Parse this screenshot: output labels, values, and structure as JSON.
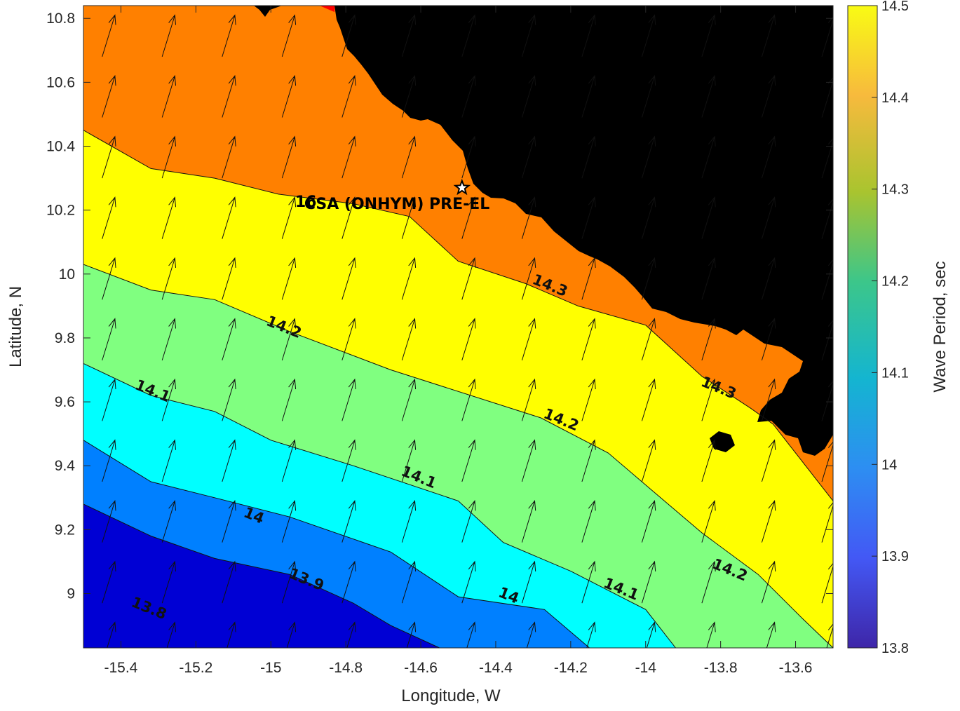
{
  "chart_data": {
    "type": "contour",
    "xlabel": "Longitude, W",
    "ylabel": "Latitude, N",
    "colorbar_label": "Wave Period, sec",
    "xlim": [
      -15.5,
      -13.5
    ],
    "ylim": [
      8.83,
      10.84
    ],
    "xticks": [
      "-15.4",
      "-15.2",
      "-15",
      "-14.8",
      "-14.6",
      "-14.4",
      "-14.2",
      "-14",
      "-13.8",
      "-13.6"
    ],
    "yticks": [
      "9",
      "9.2",
      "9.4",
      "9.6",
      "9.8",
      "10",
      "10.2",
      "10.4",
      "10.6",
      "10.8"
    ],
    "clim": [
      13.8,
      14.5
    ],
    "colorbar_ticks": [
      "13.8",
      "13.9",
      "14",
      "14.1",
      "14.2",
      "14.3",
      "14.4",
      "14.5"
    ],
    "contour_levels": [
      13.8,
      13.9,
      14.0,
      14.1,
      14.2,
      14.3,
      14.4
    ],
    "contour_labels": [
      {
        "text": "13.8",
        "lon": -15.33,
        "lat": 8.94
      },
      {
        "text": "13.9",
        "lon": -14.91,
        "lat": 9.03
      },
      {
        "text": "14",
        "lon": -15.05,
        "lat": 9.23
      },
      {
        "text": "14",
        "lon": -14.37,
        "lat": 8.98
      },
      {
        "text": "14.1",
        "lon": -15.32,
        "lat": 9.62
      },
      {
        "text": "14.1",
        "lon": -14.61,
        "lat": 9.35
      },
      {
        "text": "14.1",
        "lon": -14.07,
        "lat": 9.0
      },
      {
        "text": "14.2",
        "lon": -14.97,
        "lat": 9.82
      },
      {
        "text": "14.2",
        "lon": -14.23,
        "lat": 9.53
      },
      {
        "text": "14.2",
        "lon": -13.78,
        "lat": 9.06
      },
      {
        "text": "14.3",
        "lon": -14.26,
        "lat": 9.95
      },
      {
        "text": "14.3",
        "lon": -13.81,
        "lat": 9.63
      }
    ],
    "station": {
      "label": "CSA (ONHYM) PRE-EL",
      "prefix": "16",
      "lon": -14.49,
      "lat": 10.27
    },
    "wave_direction_deg_from_north": 17,
    "colors": {
      "13.8-13.9": "#0000d4",
      "13.9-14.0": "#0080ff",
      "14.0-14.1": "#00ffff",
      "14.1-14.2": "#80ff80",
      "14.2-14.3": "#ffff00",
      "14.3-14.4": "#ff8000",
      "14.4-14.5": "#ff0000",
      "land": "#000000"
    }
  }
}
